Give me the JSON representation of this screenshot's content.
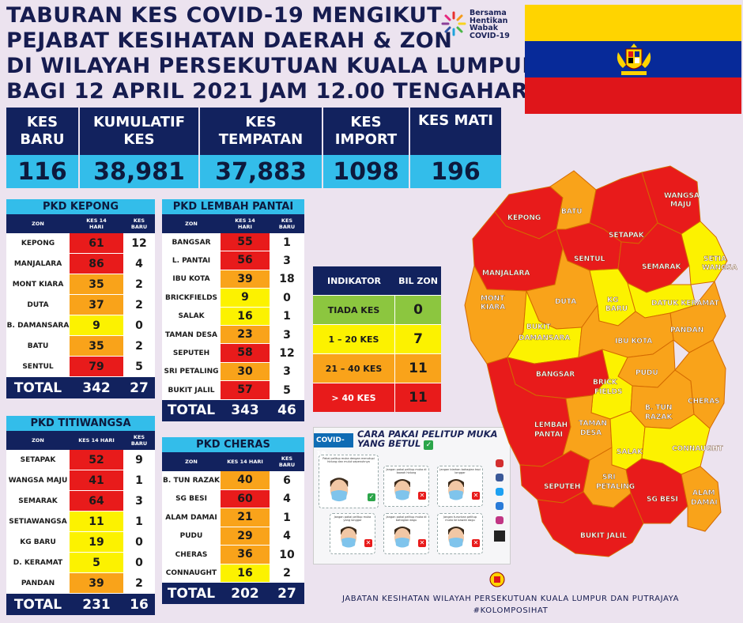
{
  "title": {
    "line1": "TABURAN KES COVID-19 MENGIKUT",
    "line2": "PEJABAT KESIHATAN DAERAH & ZON",
    "line3": "DI WILAYAH PERSEKUTUAN KUALA LUMPUR",
    "line4": "BAGI 12 APRIL 2021 JAM 12.00 TENGAHARI"
  },
  "logo": {
    "l1": "Bersama",
    "l2": "Hentikan",
    "l3": "Wabak",
    "l4": "COVID-19"
  },
  "colors": {
    "red": "#e81b1b",
    "orange": "#f9a31a",
    "yellow": "#fcf200",
    "green": "#8cc63f",
    "navy": "#12225e",
    "cyan": "#33bdea"
  },
  "summary": {
    "headers": [
      "KES\nBARU",
      "KUMULATIF\nKES",
      "KES\nTEMPATAN",
      "KES\nIMPORT",
      "KES MATI"
    ],
    "values": [
      "116",
      "38,981",
      "37,883",
      "1098",
      "196"
    ]
  },
  "pkd_kepong": {
    "title": "PKD KEPONG",
    "col_zon": "ZON",
    "col_k14": "KES 14\nHARI",
    "col_kb": "KES\nBARU",
    "rows": [
      {
        "zon": "KEPONG",
        "k14": "61",
        "kb": "12",
        "c": "red"
      },
      {
        "zon": "MANJALARA",
        "k14": "86",
        "kb": "4",
        "c": "red"
      },
      {
        "zon": "MONT KIARA",
        "k14": "35",
        "kb": "2",
        "c": "ora"
      },
      {
        "zon": "DUTA",
        "k14": "37",
        "kb": "2",
        "c": "ora"
      },
      {
        "zon": "B. DAMANSARA",
        "k14": "9",
        "kb": "0",
        "c": "yel"
      },
      {
        "zon": "BATU",
        "k14": "35",
        "kb": "2",
        "c": "ora"
      },
      {
        "zon": "SENTUL",
        "k14": "79",
        "kb": "5",
        "c": "red"
      }
    ],
    "total_label": "TOTAL",
    "total_k14": "342",
    "total_kb": "27"
  },
  "pkd_lembah": {
    "title": "PKD LEMBAH PANTAI",
    "col_zon": "ZON",
    "col_k14": "KES 14\nHARI",
    "col_kb": "KES\nBARU",
    "rows": [
      {
        "zon": "BANGSAR",
        "k14": "55",
        "kb": "1",
        "c": "red"
      },
      {
        "zon": "L. PANTAI",
        "k14": "56",
        "kb": "3",
        "c": "red"
      },
      {
        "zon": "IBU KOTA",
        "k14": "39",
        "kb": "18",
        "c": "ora"
      },
      {
        "zon": "BRICKFIELDS",
        "k14": "9",
        "kb": "0",
        "c": "yel"
      },
      {
        "zon": "SALAK",
        "k14": "16",
        "kb": "1",
        "c": "yel"
      },
      {
        "zon": "TAMAN DESA",
        "k14": "23",
        "kb": "3",
        "c": "ora"
      },
      {
        "zon": "SEPUTEH",
        "k14": "58",
        "kb": "12",
        "c": "red"
      },
      {
        "zon": "SRI PETALING",
        "k14": "30",
        "kb": "3",
        "c": "ora"
      },
      {
        "zon": "BUKIT JALIL",
        "k14": "57",
        "kb": "5",
        "c": "red"
      }
    ],
    "total_label": "TOTAL",
    "total_k14": "343",
    "total_kb": "46"
  },
  "pkd_titiwangsa": {
    "title": "PKD TITIWANGSA",
    "col_zon": "ZON",
    "col_k14": "KES 14 HARI",
    "col_kb": "KES\nBARU",
    "rows": [
      {
        "zon": "SETAPAK",
        "k14": "52",
        "kb": "9",
        "c": "red"
      },
      {
        "zon": "WANGSA MAJU",
        "k14": "41",
        "kb": "1",
        "c": "red"
      },
      {
        "zon": "SEMARAK",
        "k14": "64",
        "kb": "3",
        "c": "red"
      },
      {
        "zon": "SETIAWANGSA",
        "k14": "11",
        "kb": "1",
        "c": "yel"
      },
      {
        "zon": "KG BARU",
        "k14": "19",
        "kb": "0",
        "c": "yel"
      },
      {
        "zon": "D. KERAMAT",
        "k14": "5",
        "kb": "0",
        "c": "yel"
      },
      {
        "zon": "PANDAN",
        "k14": "39",
        "kb": "2",
        "c": "ora"
      }
    ],
    "total_label": "TOTAL",
    "total_k14": "231",
    "total_kb": "16"
  },
  "pkd_cheras": {
    "title": "PKD CHERAS",
    "col_zon": "ZON",
    "col_k14": "KES 14 HARI",
    "col_kb": "KES\nBARU",
    "rows": [
      {
        "zon": "B. TUN RAZAK",
        "k14": "40",
        "kb": "6",
        "c": "ora"
      },
      {
        "zon": "SG BESI",
        "k14": "60",
        "kb": "4",
        "c": "red"
      },
      {
        "zon": "ALAM DAMAI",
        "k14": "21",
        "kb": "1",
        "c": "ora"
      },
      {
        "zon": "PUDU",
        "k14": "29",
        "kb": "4",
        "c": "ora"
      },
      {
        "zon": "CHERAS",
        "k14": "36",
        "kb": "10",
        "c": "ora"
      },
      {
        "zon": "CONNAUGHT",
        "k14": "16",
        "kb": "2",
        "c": "yel"
      }
    ],
    "total_label": "TOTAL",
    "total_k14": "202",
    "total_kb": "27"
  },
  "indikator": {
    "h1": "INDIKATOR",
    "h2": "BIL ZON",
    "rows": [
      {
        "label": "TIADA KES",
        "count": "0",
        "c": "grn"
      },
      {
        "label": "1 – 20 KES",
        "count": "7",
        "c": "yel"
      },
      {
        "label": "21 – 40 KES",
        "count": "11",
        "c": "ora"
      },
      {
        "label": "> 40 KES",
        "count": "11",
        "c": "red"
      }
    ]
  },
  "mask_panel": {
    "tag": "COVID-19",
    "title1": "CARA PAKAI PELITUP MUKA",
    "title2": "YANG BETUL",
    "captions": [
      "Pakai pelitup muka dengan menutupi hidung dan mulut sepenuhnya",
      "Jangan pakai pelitup muka di bawah hidung",
      "Jangan biarkan bahagian tepi longgar",
      "Jangan pakai pelitup muka yang longgar",
      "Jangan pakai pelitup muka di bahagian dagu",
      "Jangan turunkan pelitup muka ke bawah dagu"
    ]
  },
  "map_labels": {
    "kepong": "KEPONG",
    "batu": "BATU",
    "wangsa": "WANGSA",
    "maju": "MAJU",
    "setapak": "SETAPAK",
    "sentul": "SENTUL",
    "manjalara": "MANJALARA",
    "semarak": "SEMARAK",
    "setia": "SETIA",
    "wangsa2": "WANGSA",
    "mont": "MONT",
    "kiara": "KIARA",
    "duta": "DUTA",
    "kg": "KG",
    "baru": "BARU",
    "datuk": "DATUK KERAMAT",
    "bukit": "BUKIT",
    "damansara": "DAMANSARA",
    "pandan": "PANDAN",
    "ibukota": "IBU KOTA",
    "bangsar": "BANGSAR",
    "brick": "BRICK",
    "fields": "FIELDS",
    "pudu": "PUDU",
    "lembah": "LEMBAH",
    "pantai": "PANTAI",
    "taman": "TAMAN",
    "desa": "DESA",
    "btun": "B. TUN",
    "razak": "RAZAK",
    "cheras": "CHERAS",
    "salak": "SALAK",
    "connaught": "CONNAUGHT",
    "seputeh": "SEPUTEH",
    "sri": "SRI",
    "petaling": "PETALING",
    "sgbesi": "SG BESI",
    "alam": "ALAM",
    "damai": "DAMAI",
    "bukitjalil": "BUKIT JALIL"
  },
  "footer": {
    "line1": "JABATAN KESIHATAN WILAYAH PERSEKUTUAN KUALA LUMPUR DAN PUTRAJAYA",
    "line2": "#KOLOMPOSIHAT"
  }
}
